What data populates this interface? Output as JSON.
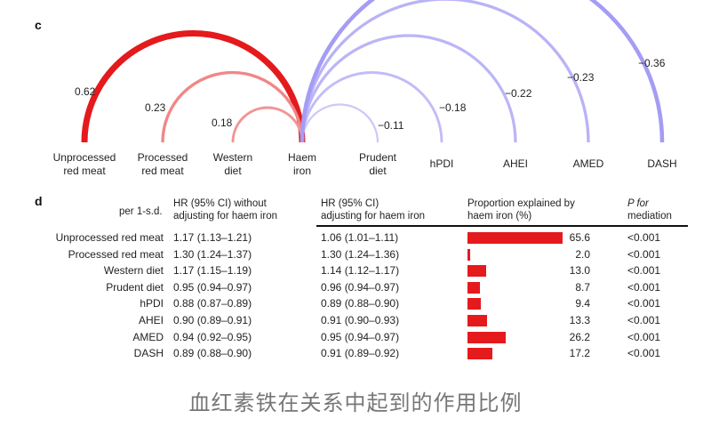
{
  "panel_c_letter": "c",
  "panel_d_letter": "d",
  "chart_data": {
    "type": "arc",
    "hub": "Haem iron",
    "colors": {
      "negative": "#e41a1c",
      "positive": "#7b6ff0"
    },
    "nodes": [
      "Unprocessed red meat",
      "Processed red meat",
      "Western diet",
      "Haem iron",
      "Prudent diet",
      "hPDI",
      "AHEI",
      "AMED",
      "DASH"
    ],
    "node_labels": [
      [
        "Unprocessed",
        "red meat"
      ],
      [
        "Processed",
        "red meat"
      ],
      [
        "Western",
        "diet"
      ],
      [
        "Haem",
        "iron"
      ],
      [
        "Prudent",
        "diet"
      ],
      [
        "hPDI"
      ],
      [
        "AHEI"
      ],
      [
        "AMED"
      ],
      [
        "DASH"
      ]
    ],
    "links": [
      {
        "target": "Unprocessed red meat",
        "value": "0.62",
        "r": 0.62
      },
      {
        "target": "Processed red meat",
        "value": "0.23",
        "r": 0.23
      },
      {
        "target": "Western diet",
        "value": "0.18",
        "r": 0.18
      },
      {
        "target": "Prudent diet",
        "value": "−0.11",
        "r": -0.11
      },
      {
        "target": "hPDI",
        "value": "−0.18",
        "r": -0.18
      },
      {
        "target": "AHEI",
        "value": "−0.22",
        "r": -0.22
      },
      {
        "target": "AMED",
        "value": "−0.23",
        "r": -0.23
      },
      {
        "target": "DASH",
        "value": "−0.36",
        "r": -0.36
      }
    ]
  },
  "table": {
    "headers": {
      "per_sd": "per 1-s.d.",
      "hr_without": [
        "HR (95% CI) without",
        "adjusting for haem iron"
      ],
      "hr_with": [
        "HR (95% CI)",
        "adjusting for haem iron"
      ],
      "proportion": [
        "Proportion explained by",
        "haem iron (%)"
      ],
      "p": [
        "P for",
        "mediation"
      ]
    },
    "bar_color": "#e41a1c",
    "bar_max_percent": 65.6,
    "rows": [
      {
        "label": "Unprocessed red meat",
        "hr_without": "1.17 (1.13–1.21)",
        "hr_with": "1.06 (1.01–1.11)",
        "percent": 65.6,
        "percent_text": "65.6",
        "p": "<0.001"
      },
      {
        "label": "Processed red meat",
        "hr_without": "1.30 (1.24–1.37)",
        "hr_with": "1.30 (1.24–1.36)",
        "percent": 2.0,
        "percent_text": "2.0",
        "p": "<0.001"
      },
      {
        "label": "Western diet",
        "hr_without": "1.17 (1.15–1.19)",
        "hr_with": "1.14 (1.12–1.17)",
        "percent": 13.0,
        "percent_text": "13.0",
        "p": "<0.001"
      },
      {
        "label": "Prudent diet",
        "hr_without": "0.95 (0.94–0.97)",
        "hr_with": "0.96 (0.94–0.97)",
        "percent": 8.7,
        "percent_text": "8.7",
        "p": "<0.001"
      },
      {
        "label": "hPDI",
        "hr_without": "0.88 (0.87–0.89)",
        "hr_with": "0.89 (0.88–0.90)",
        "percent": 9.4,
        "percent_text": "9.4",
        "p": "<0.001"
      },
      {
        "label": "AHEI",
        "hr_without": "0.90 (0.89–0.91)",
        "hr_with": "0.91 (0.90–0.93)",
        "percent": 13.3,
        "percent_text": "13.3",
        "p": "<0.001"
      },
      {
        "label": "AMED",
        "hr_without": "0.94 (0.92–0.95)",
        "hr_with": "0.95 (0.94–0.97)",
        "percent": 26.2,
        "percent_text": "26.2",
        "p": "<0.001"
      },
      {
        "label": "DASH",
        "hr_without": "0.89 (0.88–0.90)",
        "hr_with": "0.91 (0.89–0.92)",
        "percent": 17.2,
        "percent_text": "17.2",
        "p": "<0.001"
      }
    ]
  },
  "caption": "血红素铁在关系中起到的作用比例"
}
